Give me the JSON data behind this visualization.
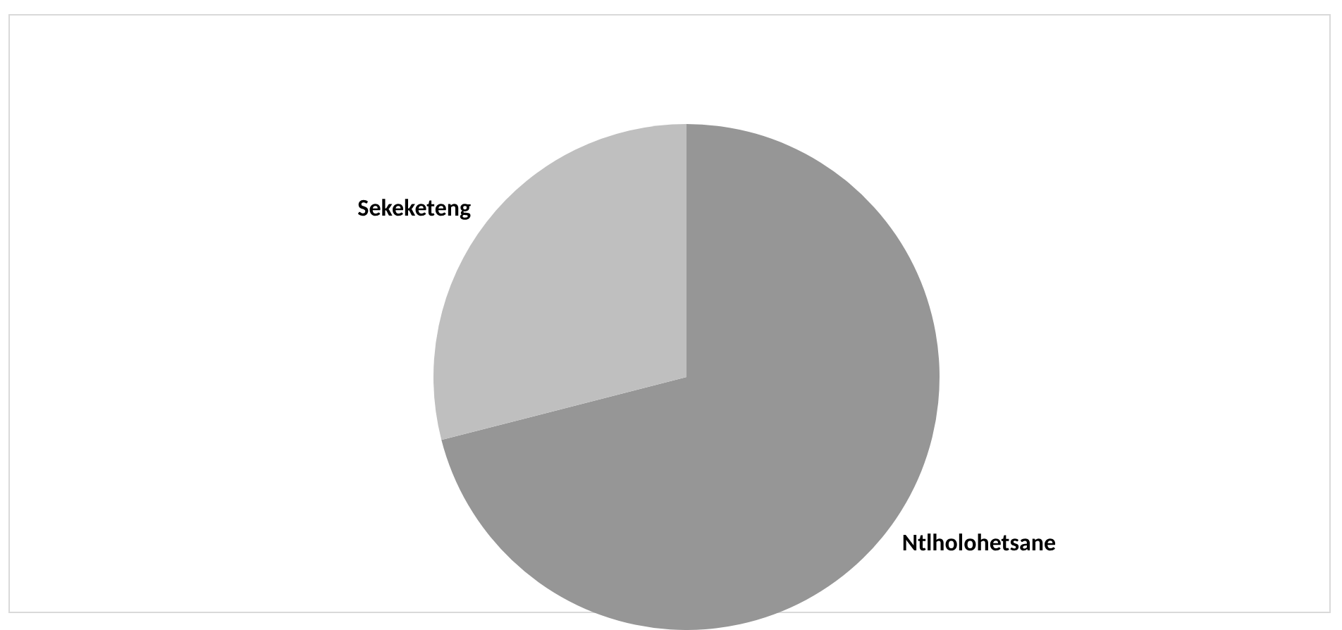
{
  "chart_data": {
    "type": "pie",
    "categories": [
      "Ntlholohetsane",
      "Sekeketeng"
    ],
    "values": [
      71,
      29
    ],
    "colors": [
      "#969696",
      "#bfbfbf"
    ],
    "legend": false
  }
}
